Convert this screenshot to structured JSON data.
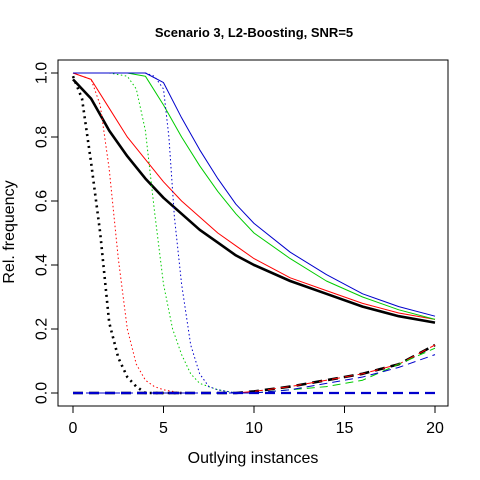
{
  "chart_data": {
    "type": "line",
    "title": "Scenario 3, L2-Boosting, SNR=5",
    "xlabel": "Outlying instances",
    "ylabel": "Rel. frequency",
    "xlim": [
      0,
      20
    ],
    "ylim": [
      0,
      1
    ],
    "x_ticks": [
      0,
      5,
      10,
      15,
      20
    ],
    "y_ticks": [
      0.0,
      0.2,
      0.4,
      0.6,
      0.8,
      1.0
    ],
    "x_tick_labels": [
      "0",
      "5",
      "10",
      "15",
      "20"
    ],
    "y_tick_labels": [
      "0.0",
      "0.2",
      "0.4",
      "0.6",
      "0.8",
      "1.0"
    ],
    "grid": false,
    "legend": "none",
    "series": [
      {
        "color": "#000000",
        "style": "solid",
        "width": 2.6,
        "x": [
          0,
          1,
          2,
          3,
          4,
          5,
          6,
          7,
          8,
          9,
          10,
          12,
          14,
          16,
          18,
          20
        ],
        "y": [
          0.98,
          0.92,
          0.82,
          0.74,
          0.67,
          0.61,
          0.56,
          0.51,
          0.47,
          0.43,
          0.4,
          0.35,
          0.31,
          0.27,
          0.24,
          0.22
        ]
      },
      {
        "color": "#ff0000",
        "style": "solid",
        "width": 1,
        "x": [
          0,
          1,
          2,
          3,
          4,
          5,
          6,
          7,
          8,
          9,
          10,
          12,
          14,
          16,
          18,
          20
        ],
        "y": [
          1.0,
          0.98,
          0.89,
          0.8,
          0.73,
          0.66,
          0.6,
          0.55,
          0.5,
          0.46,
          0.42,
          0.36,
          0.32,
          0.28,
          0.25,
          0.23
        ]
      },
      {
        "color": "#00cc00",
        "style": "solid",
        "width": 1,
        "x": [
          0,
          1,
          2,
          3,
          4,
          5,
          6,
          7,
          8,
          9,
          10,
          12,
          14,
          16,
          18,
          20
        ],
        "y": [
          1.0,
          1.0,
          1.0,
          1.0,
          0.99,
          0.9,
          0.8,
          0.71,
          0.63,
          0.56,
          0.5,
          0.42,
          0.35,
          0.3,
          0.26,
          0.23
        ]
      },
      {
        "color": "#0000cc",
        "style": "solid",
        "width": 1,
        "x": [
          0,
          1,
          2,
          3,
          4,
          5,
          6,
          7,
          8,
          9,
          10,
          12,
          14,
          16,
          18,
          20
        ],
        "y": [
          1.0,
          1.0,
          1.0,
          1.0,
          1.0,
          0.97,
          0.86,
          0.76,
          0.67,
          0.59,
          0.53,
          0.44,
          0.37,
          0.31,
          0.27,
          0.24
        ]
      },
      {
        "color": "#000000",
        "style": "dotted",
        "width": 2.6,
        "x": [
          0,
          0.5,
          1,
          1.5,
          2,
          2.5,
          3,
          3.5,
          4,
          5,
          6
        ],
        "y": [
          0.99,
          0.92,
          0.72,
          0.5,
          0.22,
          0.11,
          0.05,
          0.02,
          0.0,
          0.0,
          0.0
        ]
      },
      {
        "color": "#ff0000",
        "style": "dotted",
        "width": 1,
        "x": [
          0,
          1,
          1.5,
          2,
          2.5,
          3,
          3.5,
          4,
          4.5,
          5,
          6
        ],
        "y": [
          1.0,
          0.98,
          0.9,
          0.7,
          0.42,
          0.2,
          0.09,
          0.04,
          0.02,
          0.01,
          0.0
        ]
      },
      {
        "color": "#00cc00",
        "style": "dotted",
        "width": 1,
        "x": [
          0,
          2,
          3,
          3.5,
          4,
          4.5,
          5,
          5.5,
          6,
          6.5,
          7,
          8,
          9
        ],
        "y": [
          1.0,
          1.0,
          0.99,
          0.95,
          0.82,
          0.57,
          0.34,
          0.2,
          0.12,
          0.06,
          0.03,
          0.01,
          0.0
        ]
      },
      {
        "color": "#0000cc",
        "style": "dotted",
        "width": 1,
        "x": [
          0,
          4,
          4.5,
          5,
          5.3,
          5.6,
          6,
          6.5,
          7,
          7.5,
          8,
          9
        ],
        "y": [
          1.0,
          1.0,
          0.99,
          0.95,
          0.8,
          0.55,
          0.34,
          0.15,
          0.06,
          0.02,
          0.01,
          0.0
        ]
      },
      {
        "color": "#000000",
        "style": "dashed",
        "width": 2.6,
        "x": [
          0,
          9,
          10,
          12,
          14,
          16,
          18,
          20
        ],
        "y": [
          0.0,
          0.0,
          0.005,
          0.02,
          0.04,
          0.06,
          0.09,
          0.15
        ]
      },
      {
        "color": "#ff0000",
        "style": "dashed",
        "width": 1,
        "x": [
          0,
          9,
          10,
          12,
          14,
          16,
          18,
          20
        ],
        "y": [
          0.0,
          0.0,
          0.005,
          0.02,
          0.04,
          0.06,
          0.09,
          0.15
        ]
      },
      {
        "color": "#00cc00",
        "style": "dashed",
        "width": 1,
        "x": [
          0,
          9,
          10,
          12,
          14,
          16,
          18,
          20
        ],
        "y": [
          0.0,
          0.0,
          0.0,
          0.01,
          0.02,
          0.04,
          0.09,
          0.14
        ]
      },
      {
        "color": "#0000cc",
        "style": "dashed",
        "width": 1,
        "x": [
          0,
          9,
          10,
          12,
          14,
          16,
          18,
          20
        ],
        "y": [
          0.0,
          0.0,
          0.0,
          0.01,
          0.03,
          0.05,
          0.08,
          0.12
        ]
      },
      {
        "color": "#0000cc",
        "style": "dashed",
        "width": 2.2,
        "x": [
          0,
          20
        ],
        "y": [
          0.0,
          0.0
        ]
      }
    ]
  }
}
